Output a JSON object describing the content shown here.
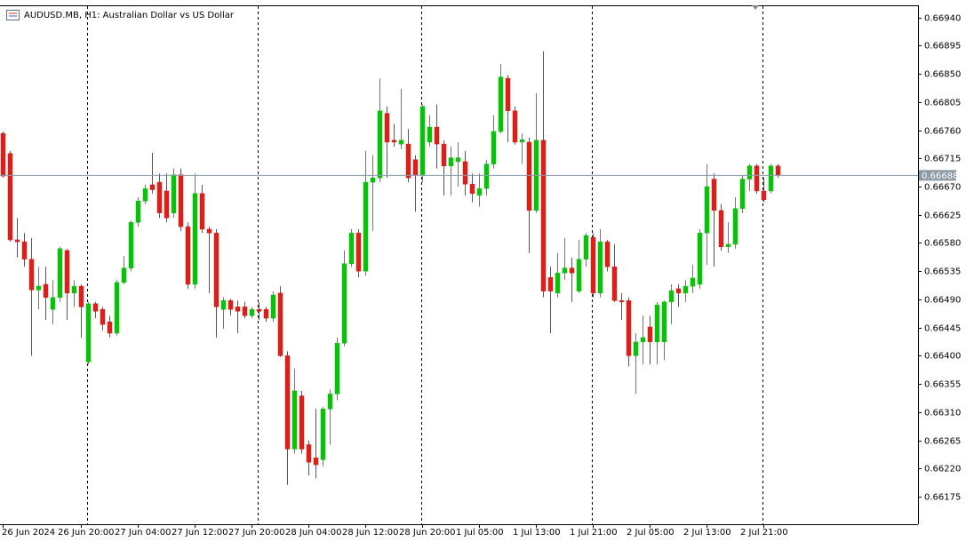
{
  "chart_data": {
    "type": "candlestick",
    "title": "AUDUSD.MB, H1: Australian Dollar vs US Dollar",
    "categories": [
      "26 Jun 2024",
      null,
      null,
      null,
      null,
      null,
      null,
      null,
      null,
      null,
      null,
      "26 Jun 20:00",
      null,
      null,
      null,
      null,
      null,
      null,
      null,
      "27 Jun 04:00",
      null,
      null,
      null,
      null,
      null,
      null,
      null,
      "27 Jun 12:00",
      null,
      null,
      null,
      null,
      null,
      null,
      null,
      "27 Jun 20:00",
      null,
      null,
      null,
      null,
      null,
      null,
      null,
      "28 Jun 04:00",
      null,
      null,
      null,
      null,
      null,
      null,
      null,
      "28 Jun 12:00",
      null,
      null,
      null,
      null,
      null,
      null,
      null,
      "28 Jun 20:00",
      null,
      null,
      null,
      null,
      null,
      null,
      null,
      "1 Jul 05:00",
      null,
      null,
      null,
      null,
      null,
      null,
      null,
      "1 Jul 13:00",
      null,
      null,
      null,
      null,
      null,
      null,
      null,
      "1 Jul 21:00",
      null,
      null,
      null,
      null,
      null,
      null,
      null,
      "2 Jul 05:00",
      null,
      null,
      null,
      null,
      null,
      null,
      null,
      "2 Jul 13:00",
      null,
      null,
      null,
      null,
      null,
      null,
      null,
      "2 Jul 21:00",
      null,
      null
    ],
    "open": [
      0.66755,
      0.66723,
      0.66585,
      0.66582,
      0.66554,
      0.66505,
      0.66514,
      0.66474,
      0.66493,
      0.66568,
      0.665,
      0.66511,
      0.6639,
      0.66483,
      0.66474,
      0.66454,
      0.66436,
      0.66517,
      0.6654,
      0.66613,
      0.66647,
      0.66673,
      0.66677,
      0.66663,
      0.66628,
      0.66689,
      0.66606,
      0.66514,
      0.66659,
      0.66602,
      0.66596,
      0.66474,
      0.66488,
      0.66478,
      0.66478,
      0.66464,
      0.66474,
      0.66474,
      0.6646,
      0.665,
      0.664,
      0.66251,
      0.66336,
      0.66258,
      0.66237,
      0.66234,
      0.66315,
      0.66339,
      0.6642,
      0.66547,
      0.66596,
      0.66535,
      0.66677,
      0.66684,
      0.66787,
      0.66744,
      0.66738,
      0.66738,
      0.66713,
      0.66689,
      0.66741,
      0.66765,
      0.66738,
      0.66703,
      0.6671,
      0.6671,
      0.66674,
      0.66656,
      0.66667,
      0.66706,
      0.66758,
      0.66843,
      0.66791,
      0.66741,
      0.66741,
      0.66632,
      0.66744,
      0.66525,
      0.665,
      0.66532,
      0.6654,
      0.66503,
      0.66554,
      0.66589,
      0.665,
      0.66582,
      0.66542,
      0.66488,
      0.66488,
      0.664,
      0.66422,
      0.66446,
      0.66422,
      0.66422,
      0.66486,
      0.66507,
      0.665,
      0.66511,
      0.66514,
      0.66596,
      0.66682,
      0.66632,
      0.66574,
      0.66578,
      0.66635,
      0.66682,
      0.66703,
      0.66663,
      0.66663,
      0.66703
    ],
    "high": [
      0.66758,
      0.66727,
      0.6662,
      0.66596,
      0.66588,
      0.66542,
      0.66542,
      0.66521,
      0.66574,
      0.66571,
      0.66521,
      0.66514,
      0.66486,
      0.66486,
      0.66478,
      0.66464,
      0.66521,
      0.66559,
      0.66616,
      0.66653,
      0.66673,
      0.66724,
      0.66691,
      0.66691,
      0.66699,
      0.66699,
      0.66613,
      0.66691,
      0.66673,
      0.66606,
      0.66602,
      0.66493,
      0.66491,
      0.66488,
      0.66486,
      0.66478,
      0.66486,
      0.66478,
      0.66503,
      0.66511,
      0.66407,
      0.66379,
      0.66344,
      0.66265,
      0.66315,
      0.66318,
      0.66346,
      0.66429,
      0.66568,
      0.66602,
      0.66602,
      0.66727,
      0.6672,
      0.66843,
      0.66798,
      0.6677,
      0.66826,
      0.66762,
      0.6672,
      0.66801,
      0.66784,
      0.66801,
      0.66744,
      0.66734,
      0.66741,
      0.66727,
      0.66691,
      0.66691,
      0.66713,
      0.66784,
      0.66866,
      0.66848,
      0.66798,
      0.66755,
      0.66748,
      0.66819,
      0.66886,
      0.66542,
      0.66564,
      0.66588,
      0.66557,
      0.66585,
      0.66596,
      0.66596,
      0.66602,
      0.66585,
      0.66578,
      0.665,
      0.66493,
      0.66436,
      0.66464,
      0.66464,
      0.66486,
      0.66488,
      0.66514,
      0.66514,
      0.66521,
      0.66545,
      0.66602,
      0.66706,
      0.66691,
      0.66642,
      0.66613,
      0.66653,
      0.66687,
      0.66706,
      0.66706,
      0.66684,
      0.66706,
      0.66706
    ],
    "low": [
      0.66684,
      0.66582,
      0.66557,
      0.66542,
      0.664,
      0.66474,
      0.66457,
      0.6645,
      0.66486,
      0.66457,
      0.66478,
      0.66429,
      0.66386,
      0.6646,
      0.6644,
      0.66429,
      0.66432,
      0.66514,
      0.66535,
      0.66606,
      0.66642,
      0.66659,
      0.6662,
      0.66613,
      0.6662,
      0.66599,
      0.66507,
      0.66507,
      0.66596,
      0.665,
      0.66429,
      0.66443,
      0.66464,
      0.66436,
      0.6646,
      0.6646,
      0.66457,
      0.66454,
      0.66454,
      0.66398,
      0.66194,
      0.66244,
      0.66244,
      0.66209,
      0.66204,
      0.66223,
      0.66258,
      0.66329,
      0.66415,
      0.66542,
      0.66525,
      0.66528,
      0.66599,
      0.66677,
      0.66684,
      0.66734,
      0.6673,
      0.66677,
      0.6663,
      0.66677,
      0.66734,
      0.66699,
      0.66656,
      0.66656,
      0.6667,
      0.66656,
      0.66645,
      0.66638,
      0.66656,
      0.66699,
      0.66755,
      0.66741,
      0.66737,
      0.66706,
      0.66564,
      0.66628,
      0.66493,
      0.66436,
      0.66493,
      0.66521,
      0.66486,
      0.665,
      0.66542,
      0.66493,
      0.66493,
      0.66535,
      0.66486,
      0.66457,
      0.66383,
      0.66339,
      0.66386,
      0.66386,
      0.66386,
      0.66393,
      0.6645,
      0.66478,
      0.66486,
      0.665,
      0.66507,
      0.66545,
      0.66542,
      0.66568,
      0.66564,
      0.66571,
      0.66628,
      0.66663,
      0.66659,
      0.66645,
      0.66659,
      0.66684
    ],
    "close": [
      0.66687,
      0.66585,
      0.66582,
      0.66554,
      0.66505,
      0.66511,
      0.66493,
      0.66493,
      0.66571,
      0.665,
      0.66511,
      0.66478,
      0.66483,
      0.66471,
      0.6645,
      0.66436,
      0.66517,
      0.6654,
      0.66613,
      0.66647,
      0.66667,
      0.66665,
      0.66628,
      0.6662,
      0.66689,
      0.66606,
      0.66514,
      0.66659,
      0.66602,
      0.66596,
      0.66478,
      0.66488,
      0.66474,
      0.66471,
      0.66464,
      0.66474,
      0.66471,
      0.6646,
      0.66497,
      0.664,
      0.66251,
      0.66344,
      0.66251,
      0.6623,
      0.66226,
      0.66315,
      0.66339,
      0.6642,
      0.66547,
      0.66596,
      0.66535,
      0.66677,
      0.66684,
      0.66791,
      0.66741,
      0.66741,
      0.66744,
      0.66684,
      0.66689,
      0.66798,
      0.66765,
      0.66738,
      0.66703,
      0.66716,
      0.66716,
      0.66674,
      0.66659,
      0.66667,
      0.66706,
      0.66758,
      0.66845,
      0.66791,
      0.66741,
      0.66745,
      0.66632,
      0.66744,
      0.66503,
      0.66503,
      0.66532,
      0.6654,
      0.66532,
      0.66554,
      0.66592,
      0.665,
      0.66582,
      0.66542,
      0.66488,
      0.66486,
      0.664,
      0.66422,
      0.66429,
      0.66422,
      0.66481,
      0.66486,
      0.66504,
      0.665,
      0.66511,
      0.66524,
      0.66596,
      0.6667,
      0.66632,
      0.66574,
      0.66578,
      0.66635,
      0.66682,
      0.66703,
      0.66663,
      0.66649,
      0.66703,
      0.66688
    ],
    "up_color": "#00c800",
    "down_color": "#e41b17",
    "ylim": [
      0.66131,
      0.66958
    ],
    "yticks": [
      {
        "value": 0.6694,
        "label": "0.66940"
      },
      0.66895,
      {
        "value": 0.6685,
        "label": "0.66850"
      },
      0.66805,
      {
        "value": 0.6676,
        "label": "0.66760"
      },
      0.66715,
      {
        "value": 0.6667,
        "label": "0.66670"
      },
      0.66625,
      {
        "value": 0.6658,
        "label": "0.66580"
      },
      0.66535,
      {
        "value": 0.6649,
        "label": "0.66490"
      },
      0.66445,
      {
        "value": 0.664,
        "label": "0.66400"
      },
      0.66355,
      {
        "value": 0.6631,
        "label": "0.66310"
      },
      0.66265,
      {
        "value": 0.6622,
        "label": "0.66220"
      },
      0.66175
    ],
    "last_price": 0.66688,
    "grid": false
  }
}
